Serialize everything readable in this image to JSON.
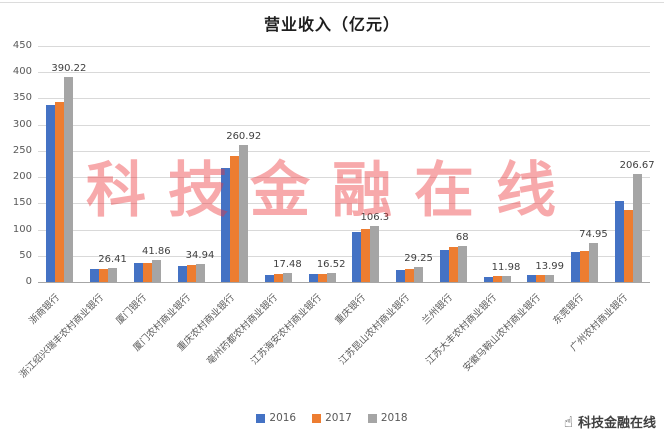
{
  "watermark": "科技金融在线",
  "brand": {
    "name": "科技金融在线"
  },
  "chart_data": {
    "type": "bar",
    "title": "营业收入（亿元）",
    "xlabel": "",
    "ylabel": "",
    "ylim": [
      0,
      450
    ],
    "yticks": [
      0,
      50,
      100,
      150,
      200,
      250,
      300,
      350,
      400,
      450
    ],
    "grid": true,
    "legend_position": "bottom",
    "categories": [
      "浙商银行",
      "浙江绍兴瑞丰农村商业银行",
      "厦门银行",
      "厦门农村商业银行",
      "重庆农村商业银行",
      "亳州药都农村商业银行",
      "江苏海安农村商业银行",
      "重庆银行",
      "江苏昆山农村商业银行",
      "兰州银行",
      "江苏大丰农村商业银行",
      "安徽马鞍山农村商业银行",
      "东莞银行",
      "广州农村商业银行"
    ],
    "series": [
      {
        "name": "2016",
        "color": "#4472C4",
        "values": [
          337,
          25,
          37,
          30,
          218,
          13,
          15,
          96,
          22,
          61,
          10,
          13,
          57,
          155
        ]
      },
      {
        "name": "2017",
        "color": "#ED7D31",
        "values": [
          344,
          25.5,
          36,
          32,
          241,
          15,
          15.5,
          101,
          24.5,
          66,
          11,
          12.5,
          60,
          137
        ]
      },
      {
        "name": "2018",
        "color": "#A5A5A5",
        "values": [
          390.22,
          26.41,
          41.86,
          34.94,
          260.92,
          17.48,
          16.52,
          106.3,
          29.25,
          68,
          11.98,
          13.99,
          74.95,
          206.67
        ]
      }
    ],
    "data_labels_series": "2018"
  }
}
